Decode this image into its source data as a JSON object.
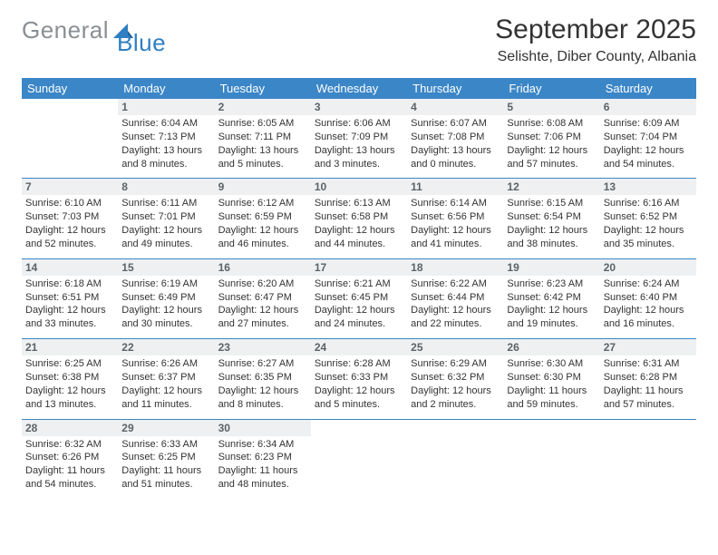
{
  "logo": {
    "grey": "General",
    "blue": "Blue"
  },
  "header": {
    "title": "September 2025",
    "location": "Selishte, Diber County, Albania"
  },
  "colors": {
    "header_bg": "#3b86c7",
    "header_text": "#ffffff",
    "date_bar_bg": "#eef0f1",
    "date_bar_text": "#5c6367",
    "body_text": "#333333",
    "row_divider": "#3b86c7",
    "logo_grey": "#8a8f94",
    "logo_blue": "#2f7fc2"
  },
  "days": [
    "Sunday",
    "Monday",
    "Tuesday",
    "Wednesday",
    "Thursday",
    "Friday",
    "Saturday"
  ],
  "weeks": [
    [
      {
        "empty": true
      },
      {
        "date": "1",
        "sunrise": "Sunrise: 6:04 AM",
        "sunset": "Sunset: 7:13 PM",
        "daylight": "Daylight: 13 hours and 8 minutes."
      },
      {
        "date": "2",
        "sunrise": "Sunrise: 6:05 AM",
        "sunset": "Sunset: 7:11 PM",
        "daylight": "Daylight: 13 hours and 5 minutes."
      },
      {
        "date": "3",
        "sunrise": "Sunrise: 6:06 AM",
        "sunset": "Sunset: 7:09 PM",
        "daylight": "Daylight: 13 hours and 3 minutes."
      },
      {
        "date": "4",
        "sunrise": "Sunrise: 6:07 AM",
        "sunset": "Sunset: 7:08 PM",
        "daylight": "Daylight: 13 hours and 0 minutes."
      },
      {
        "date": "5",
        "sunrise": "Sunrise: 6:08 AM",
        "sunset": "Sunset: 7:06 PM",
        "daylight": "Daylight: 12 hours and 57 minutes."
      },
      {
        "date": "6",
        "sunrise": "Sunrise: 6:09 AM",
        "sunset": "Sunset: 7:04 PM",
        "daylight": "Daylight: 12 hours and 54 minutes."
      }
    ],
    [
      {
        "date": "7",
        "sunrise": "Sunrise: 6:10 AM",
        "sunset": "Sunset: 7:03 PM",
        "daylight": "Daylight: 12 hours and 52 minutes."
      },
      {
        "date": "8",
        "sunrise": "Sunrise: 6:11 AM",
        "sunset": "Sunset: 7:01 PM",
        "daylight": "Daylight: 12 hours and 49 minutes."
      },
      {
        "date": "9",
        "sunrise": "Sunrise: 6:12 AM",
        "sunset": "Sunset: 6:59 PM",
        "daylight": "Daylight: 12 hours and 46 minutes."
      },
      {
        "date": "10",
        "sunrise": "Sunrise: 6:13 AM",
        "sunset": "Sunset: 6:58 PM",
        "daylight": "Daylight: 12 hours and 44 minutes."
      },
      {
        "date": "11",
        "sunrise": "Sunrise: 6:14 AM",
        "sunset": "Sunset: 6:56 PM",
        "daylight": "Daylight: 12 hours and 41 minutes."
      },
      {
        "date": "12",
        "sunrise": "Sunrise: 6:15 AM",
        "sunset": "Sunset: 6:54 PM",
        "daylight": "Daylight: 12 hours and 38 minutes."
      },
      {
        "date": "13",
        "sunrise": "Sunrise: 6:16 AM",
        "sunset": "Sunset: 6:52 PM",
        "daylight": "Daylight: 12 hours and 35 minutes."
      }
    ],
    [
      {
        "date": "14",
        "sunrise": "Sunrise: 6:18 AM",
        "sunset": "Sunset: 6:51 PM",
        "daylight": "Daylight: 12 hours and 33 minutes."
      },
      {
        "date": "15",
        "sunrise": "Sunrise: 6:19 AM",
        "sunset": "Sunset: 6:49 PM",
        "daylight": "Daylight: 12 hours and 30 minutes."
      },
      {
        "date": "16",
        "sunrise": "Sunrise: 6:20 AM",
        "sunset": "Sunset: 6:47 PM",
        "daylight": "Daylight: 12 hours and 27 minutes."
      },
      {
        "date": "17",
        "sunrise": "Sunrise: 6:21 AM",
        "sunset": "Sunset: 6:45 PM",
        "daylight": "Daylight: 12 hours and 24 minutes."
      },
      {
        "date": "18",
        "sunrise": "Sunrise: 6:22 AM",
        "sunset": "Sunset: 6:44 PM",
        "daylight": "Daylight: 12 hours and 22 minutes."
      },
      {
        "date": "19",
        "sunrise": "Sunrise: 6:23 AM",
        "sunset": "Sunset: 6:42 PM",
        "daylight": "Daylight: 12 hours and 19 minutes."
      },
      {
        "date": "20",
        "sunrise": "Sunrise: 6:24 AM",
        "sunset": "Sunset: 6:40 PM",
        "daylight": "Daylight: 12 hours and 16 minutes."
      }
    ],
    [
      {
        "date": "21",
        "sunrise": "Sunrise: 6:25 AM",
        "sunset": "Sunset: 6:38 PM",
        "daylight": "Daylight: 12 hours and 13 minutes."
      },
      {
        "date": "22",
        "sunrise": "Sunrise: 6:26 AM",
        "sunset": "Sunset: 6:37 PM",
        "daylight": "Daylight: 12 hours and 11 minutes."
      },
      {
        "date": "23",
        "sunrise": "Sunrise: 6:27 AM",
        "sunset": "Sunset: 6:35 PM",
        "daylight": "Daylight: 12 hours and 8 minutes."
      },
      {
        "date": "24",
        "sunrise": "Sunrise: 6:28 AM",
        "sunset": "Sunset: 6:33 PM",
        "daylight": "Daylight: 12 hours and 5 minutes."
      },
      {
        "date": "25",
        "sunrise": "Sunrise: 6:29 AM",
        "sunset": "Sunset: 6:32 PM",
        "daylight": "Daylight: 12 hours and 2 minutes."
      },
      {
        "date": "26",
        "sunrise": "Sunrise: 6:30 AM",
        "sunset": "Sunset: 6:30 PM",
        "daylight": "Daylight: 11 hours and 59 minutes."
      },
      {
        "date": "27",
        "sunrise": "Sunrise: 6:31 AM",
        "sunset": "Sunset: 6:28 PM",
        "daylight": "Daylight: 11 hours and 57 minutes."
      }
    ],
    [
      {
        "date": "28",
        "sunrise": "Sunrise: 6:32 AM",
        "sunset": "Sunset: 6:26 PM",
        "daylight": "Daylight: 11 hours and 54 minutes."
      },
      {
        "date": "29",
        "sunrise": "Sunrise: 6:33 AM",
        "sunset": "Sunset: 6:25 PM",
        "daylight": "Daylight: 11 hours and 51 minutes."
      },
      {
        "date": "30",
        "sunrise": "Sunrise: 6:34 AM",
        "sunset": "Sunset: 6:23 PM",
        "daylight": "Daylight: 11 hours and 48 minutes."
      },
      {
        "empty": true
      },
      {
        "empty": true
      },
      {
        "empty": true
      },
      {
        "empty": true
      }
    ]
  ]
}
